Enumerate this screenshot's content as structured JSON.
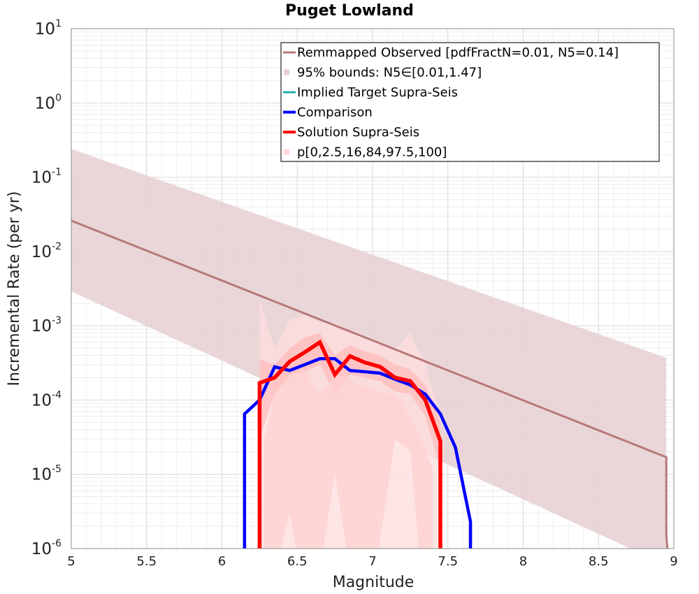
{
  "chart_data": {
    "type": "line",
    "title": "Puget Lowland",
    "xlabel": "Magnitude",
    "ylabel": "Incremental Rate (per yr)",
    "xlim": [
      5,
      9
    ],
    "ylim": [
      1e-06,
      10
    ],
    "yscale": "log",
    "grid": true,
    "x_ticks": [
      "5",
      "5.5",
      "6",
      "6.5",
      "7",
      "7.5",
      "8",
      "8.5",
      "9"
    ],
    "y_ticks": [
      {
        "base": "10",
        "exp": "-6"
      },
      {
        "base": "10",
        "exp": "-5"
      },
      {
        "base": "10",
        "exp": "-4"
      },
      {
        "base": "10",
        "exp": "-3"
      },
      {
        "base": "10",
        "exp": "-2"
      },
      {
        "base": "10",
        "exp": "-1"
      },
      {
        "base": "10",
        "exp": "0"
      },
      {
        "base": "10",
        "exp": "1"
      }
    ],
    "legend_position": "top-right",
    "legend": [
      {
        "label": "Remmapped Observed [pdfFractN=0.01, N5=0.14]",
        "kind": "line",
        "color": "#b87878"
      },
      {
        "label": "95% bounds: N5∈[0.01,1.47]",
        "kind": "fill",
        "color": "#e6cfd1"
      },
      {
        "label": "Implied Target Supra-Seis",
        "kind": "line",
        "color": "#20b0b0"
      },
      {
        "label": "Comparison",
        "kind": "line",
        "color": "#0000ff"
      },
      {
        "label": "Solution Supra-Seis",
        "kind": "line",
        "color": "#ff0000"
      },
      {
        "label": "p[0,2.5,16,84,97.5,100]",
        "kind": "fill",
        "color": "#ffd6d6"
      }
    ],
    "series": [
      {
        "name": "Remmapped Observed [pdfFractN=0.01, N5=0.14]",
        "color": "#b87878",
        "x": [
          5.0,
          8.95,
          8.95,
          8.97
        ],
        "y": [
          0.026,
          1.7e-05,
          1.5e-06,
          5e-07
        ]
      },
      {
        "name": "Comparison",
        "color": "#0000ff",
        "x": [
          6.15,
          6.15,
          6.25,
          6.35,
          6.45,
          6.55,
          6.65,
          6.75,
          6.85,
          6.95,
          7.05,
          7.15,
          7.25,
          7.35,
          7.45,
          7.55,
          7.65,
          7.65
        ],
        "y": [
          5e-07,
          6.5e-05,
          0.0001,
          0.00028,
          0.00025,
          0.0003,
          0.00036,
          0.00036,
          0.00025,
          0.00024,
          0.00023,
          0.00019,
          0.00016,
          0.00012,
          6.5e-05,
          2.3e-05,
          2.3e-06,
          5e-07
        ]
      },
      {
        "name": "Solution Supra-Seis",
        "color": "#ff0000",
        "x": [
          6.25,
          6.25,
          6.35,
          6.45,
          6.55,
          6.65,
          6.75,
          6.85,
          6.95,
          7.05,
          7.15,
          7.25,
          7.35,
          7.45,
          7.45
        ],
        "y": [
          5e-07,
          0.00017,
          0.0002,
          0.00033,
          0.00044,
          0.0006,
          0.00022,
          0.00039,
          0.00032,
          0.00028,
          0.0002,
          0.00018,
          0.0001,
          2.8e-05,
          5e-07
        ]
      }
    ],
    "bands": [
      {
        "name": "95% bounds: N5∈[0.01,1.47]",
        "color": "#e6cfd1",
        "x": [
          5.0,
          8.95
        ],
        "lower": [
          0.0029,
          6e-07
        ],
        "upper": [
          0.24,
          0.00037
        ]
      },
      {
        "name": "p[0,2.5,16,84,97.5,100] outer",
        "color": "#ffdede",
        "x": [
          6.25,
          6.35,
          6.45,
          6.55,
          6.65,
          6.75,
          6.85,
          6.95,
          7.05,
          7.15,
          7.25,
          7.35,
          7.45
        ],
        "lower": [
          5e-07,
          5e-07,
          5e-07,
          5e-07,
          5e-07,
          5e-07,
          5e-07,
          5e-07,
          5e-07,
          5e-07,
          5e-07,
          5e-07,
          5e-07
        ],
        "upper": [
          0.0023,
          0.0005,
          0.0012,
          0.0014,
          0.0011,
          0.0011,
          0.00085,
          0.0007,
          0.0006,
          0.00048,
          0.0008,
          0.0003,
          6e-05
        ]
      },
      {
        "name": "p[0,2.5,16,84,97.5,100] inner",
        "color": "#ffbcbc",
        "x": [
          6.25,
          6.35,
          6.45,
          6.55,
          6.65,
          6.75,
          6.85,
          6.95,
          7.05,
          7.15,
          7.25,
          7.35,
          7.45
        ],
        "lower": [
          3e-05,
          0.00012,
          0.00022,
          0.00024,
          0.0003,
          0.00012,
          0.00022,
          0.0002,
          0.00018,
          0.00013,
          0.00012,
          6e-05,
          1.2e-05
        ],
        "upper": [
          0.00035,
          0.0003,
          0.0005,
          0.0007,
          0.0008,
          0.0004,
          0.00055,
          0.00045,
          0.0004,
          0.0003,
          0.00026,
          0.00016,
          5e-05
        ]
      },
      {
        "name": "p[0,2.5,16,84,97.5,100] lower envelope",
        "color": "#ffd0d0",
        "x": [
          6.28,
          6.35,
          6.45,
          6.52,
          6.52,
          6.65,
          6.75,
          6.85,
          6.85,
          7.02,
          7.15,
          7.25,
          7.32,
          7.4
        ],
        "lower": [
          5e-07,
          5e-07,
          3e-06,
          5e-07,
          5e-07,
          5e-07,
          1e-05,
          5e-07,
          5e-07,
          5e-07,
          3e-05,
          2e-05,
          5e-07,
          5e-07
        ],
        "upper": [
          3e-05,
          0.00012,
          0.00022,
          0.00024,
          0.0003,
          0.00012,
          0.00022,
          0.0002,
          0.00018,
          0.00013,
          0.00012,
          6e-05,
          3e-05,
          1.2e-05
        ]
      }
    ]
  }
}
